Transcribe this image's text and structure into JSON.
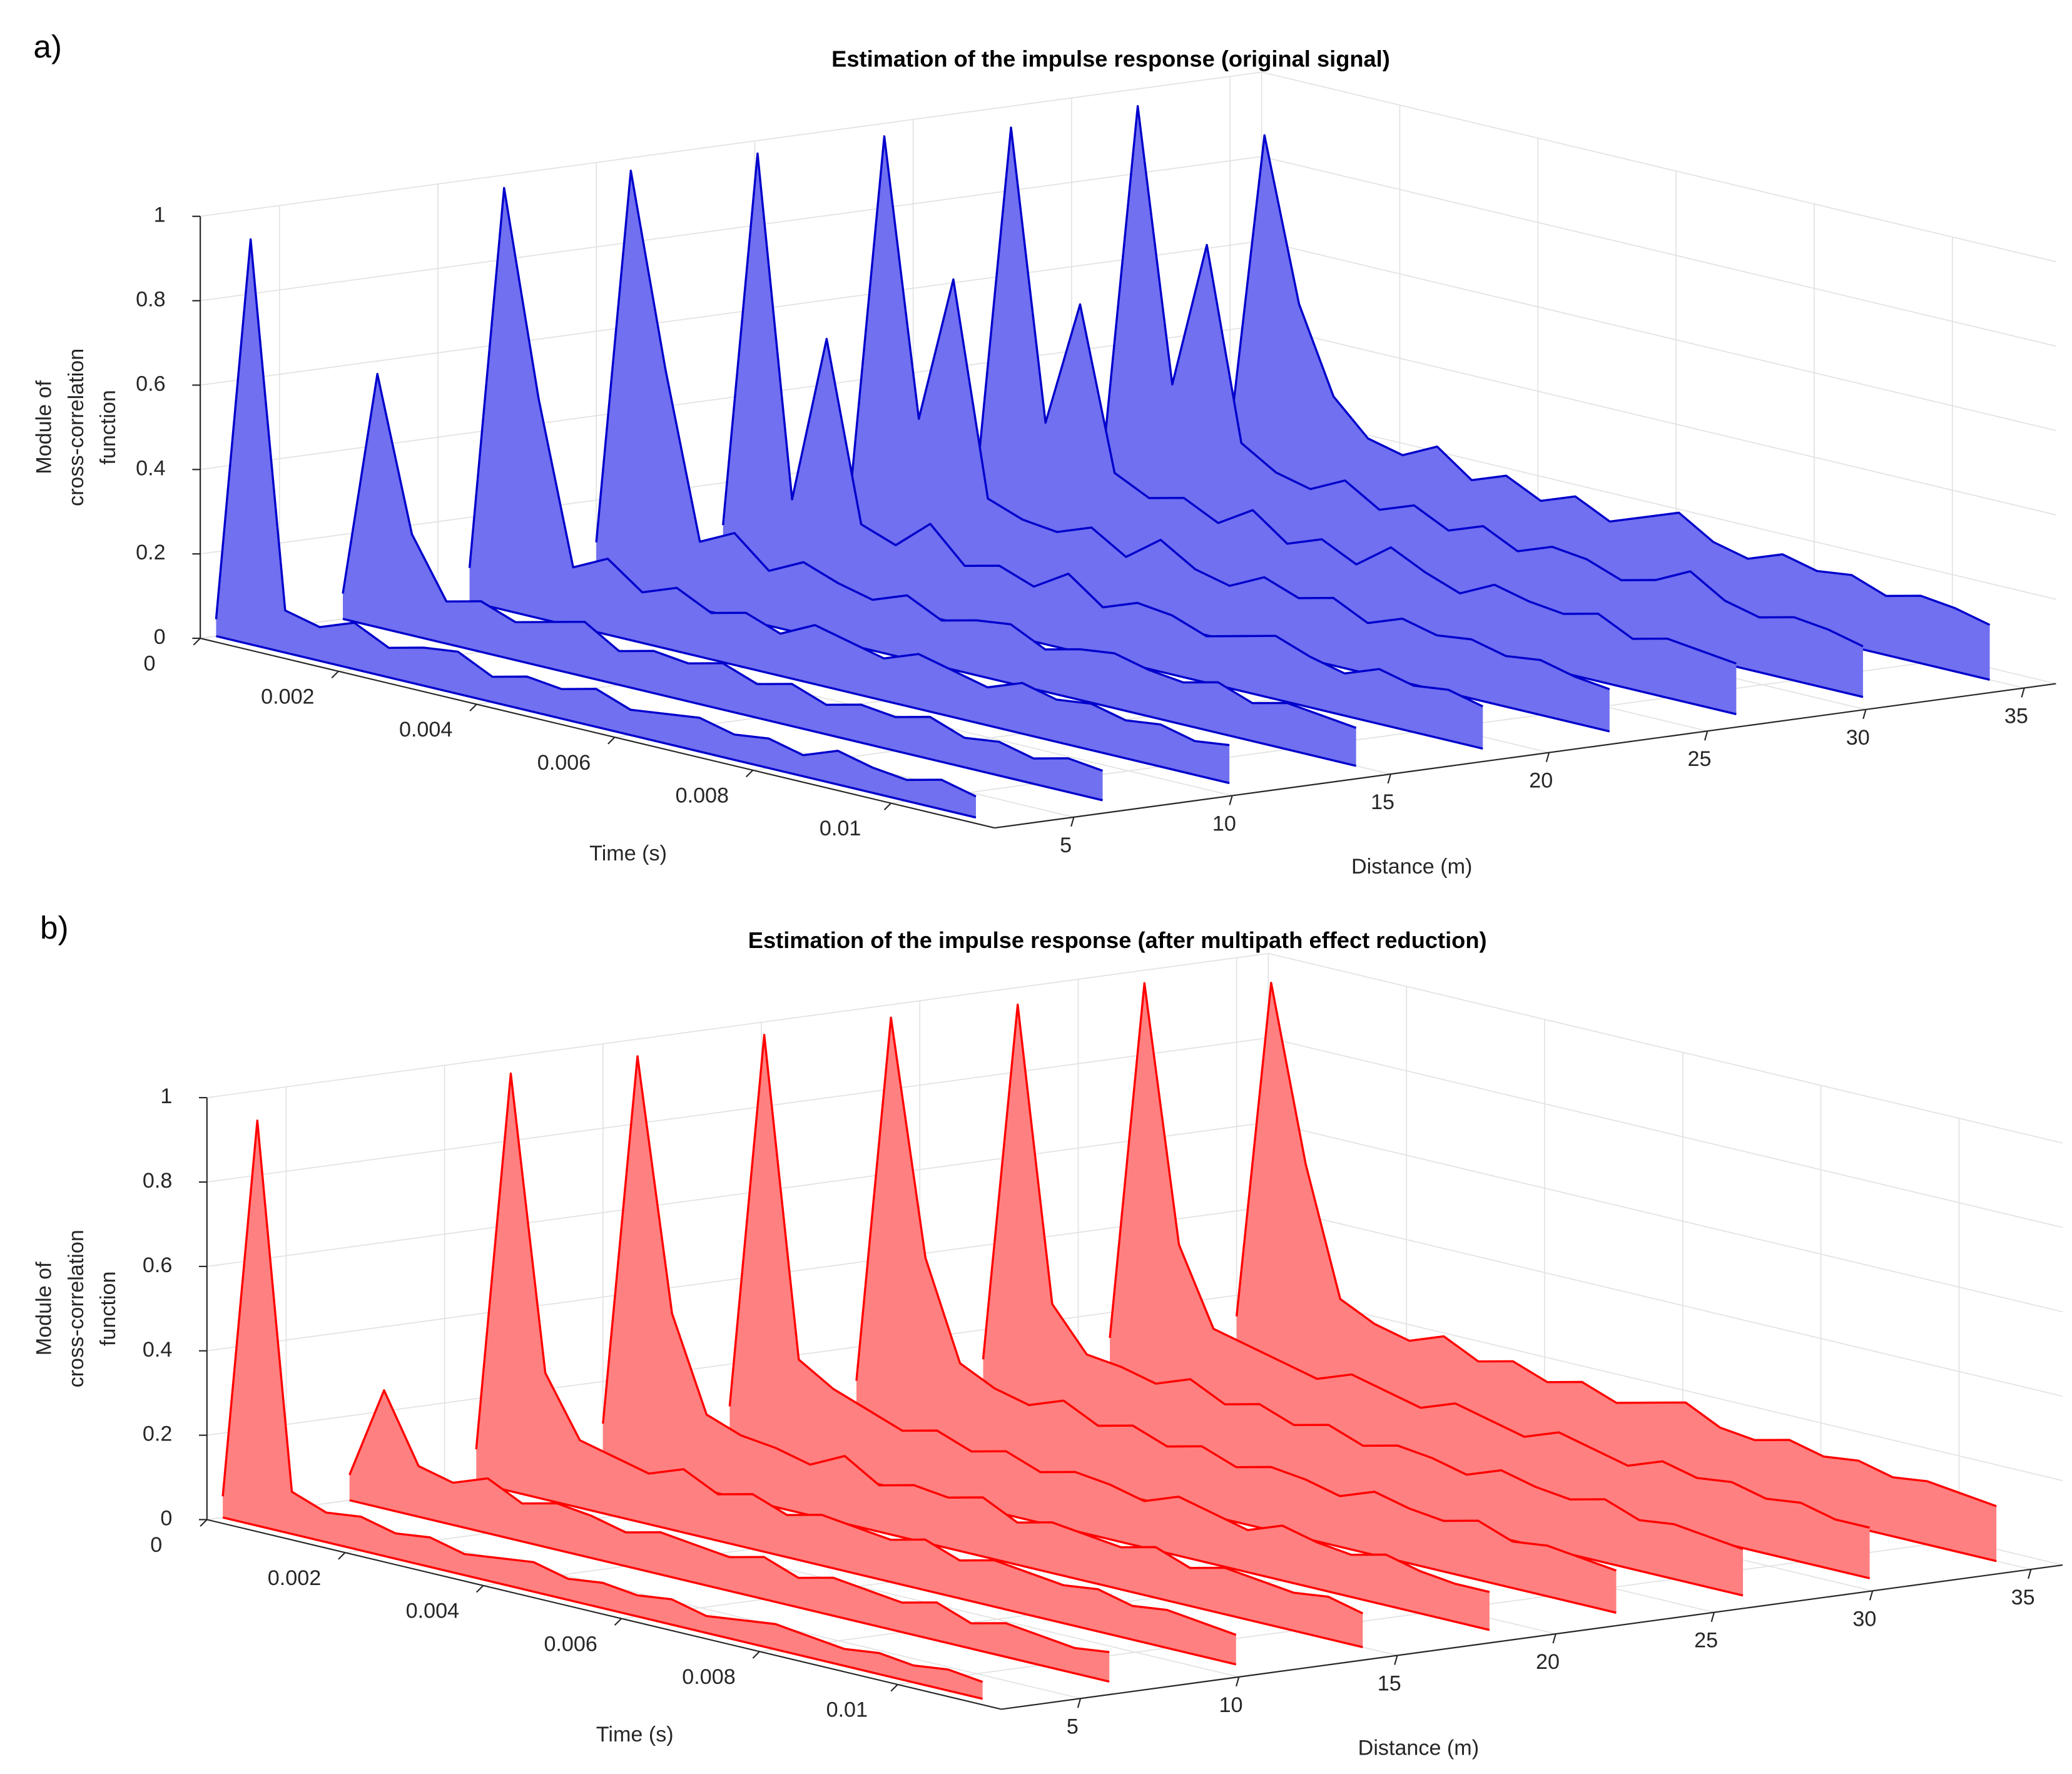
{
  "chart_data": [
    {
      "type": "waterfall3d",
      "label": "a)",
      "title": "Estimation of the impulse response (original signal)",
      "xlabel": "Time (s)",
      "ylabel": "Distance (m)",
      "zlabel": [
        "Module of",
        "cross-correlation",
        "function"
      ],
      "color": "#0000cc",
      "fill_color": "#7070f0",
      "xlim": [
        0,
        0.0115
      ],
      "ylim": [
        2.5,
        36
      ],
      "zlim": [
        0,
        1
      ],
      "xticks": [
        0,
        0.002,
        0.004,
        0.006,
        0.008,
        0.01
      ],
      "yticks": [
        5,
        10,
        15,
        20,
        25,
        30,
        35
      ],
      "zticks": [
        0,
        0.2,
        0.4,
        0.6,
        0.8,
        1
      ],
      "grid": true,
      "x": [
        0,
        0.0005,
        0.001,
        0.0015,
        0.002,
        0.0025,
        0.003,
        0.0035,
        0.004,
        0.0045,
        0.005,
        0.0055,
        0.006,
        0.0065,
        0.007,
        0.0075,
        0.008,
        0.0085,
        0.009,
        0.0095,
        0.01,
        0.0105,
        0.011
      ],
      "series": [
        {
          "distance": 3,
          "values": [
            0.04,
            0.96,
            0.1,
            0.08,
            0.11,
            0.07,
            0.09,
            0.1,
            0.06,
            0.08,
            0.07,
            0.09,
            0.06,
            0.07,
            0.08,
            0.06,
            0.07,
            0.05,
            0.08,
            0.06,
            0.05,
            0.07,
            0.05
          ]
        },
        {
          "distance": 7,
          "values": [
            0.06,
            0.6,
            0.24,
            0.1,
            0.12,
            0.09,
            0.11,
            0.13,
            0.08,
            0.1,
            0.09,
            0.11,
            0.08,
            0.1,
            0.07,
            0.09,
            0.08,
            0.1,
            0.07,
            0.08,
            0.06,
            0.08,
            0.07
          ]
        },
        {
          "distance": 11,
          "values": [
            0.08,
            1.0,
            0.52,
            0.14,
            0.18,
            0.12,
            0.15,
            0.11,
            0.13,
            0.1,
            0.14,
            0.12,
            0.1,
            0.13,
            0.11,
            0.09,
            0.12,
            0.1,
            0.11,
            0.09,
            0.1,
            0.08,
            0.09
          ]
        },
        {
          "distance": 15,
          "values": [
            0.1,
            1.0,
            0.55,
            0.16,
            0.2,
            0.13,
            0.17,
            0.14,
            0.12,
            0.15,
            0.11,
            0.13,
            0.14,
            0.1,
            0.12,
            0.13,
            0.11,
            0.1,
            0.12,
            0.09,
            0.11,
            0.1,
            0.09
          ]
        },
        {
          "distance": 19,
          "values": [
            0.1,
            1.0,
            0.2,
            0.6,
            0.18,
            0.15,
            0.22,
            0.14,
            0.16,
            0.13,
            0.18,
            0.12,
            0.15,
            0.14,
            0.11,
            0.13,
            0.15,
            0.12,
            0.1,
            0.13,
            0.11,
            0.12,
            0.1
          ]
        },
        {
          "distance": 23,
          "values": [
            0.12,
            1.0,
            0.35,
            0.7,
            0.2,
            0.17,
            0.16,
            0.19,
            0.14,
            0.2,
            0.15,
            0.13,
            0.17,
            0.14,
            0.16,
            0.12,
            0.15,
            0.13,
            0.14,
            0.12,
            0.13,
            0.11,
            0.1
          ]
        },
        {
          "distance": 27,
          "values": [
            0.12,
            0.98,
            0.3,
            0.6,
            0.22,
            0.18,
            0.2,
            0.16,
            0.21,
            0.15,
            0.18,
            0.14,
            0.2,
            0.16,
            0.13,
            0.17,
            0.15,
            0.14,
            0.16,
            0.12,
            0.14,
            0.13,
            0.12
          ]
        },
        {
          "distance": 31,
          "values": [
            0.14,
            0.99,
            0.35,
            0.7,
            0.25,
            0.2,
            0.18,
            0.22,
            0.17,
            0.2,
            0.16,
            0.19,
            0.15,
            0.18,
            0.17,
            0.14,
            0.16,
            0.2,
            0.15,
            0.13,
            0.15,
            0.14,
            0.12
          ]
        },
        {
          "distance": 35,
          "values": [
            0.15,
            0.88,
            0.5,
            0.3,
            0.22,
            0.2,
            0.24,
            0.18,
            0.21,
            0.17,
            0.2,
            0.16,
            0.19,
            0.22,
            0.17,
            0.15,
            0.18,
            0.16,
            0.17,
            0.14,
            0.16,
            0.15,
            0.13
          ]
        }
      ]
    },
    {
      "type": "waterfall3d",
      "label": "b)",
      "title": "Estimation of the impulse response (after multipath effect reduction)",
      "xlabel": "Time (s)",
      "ylabel": "Distance (m)",
      "zlabel": [
        "Module of",
        "cross-correlation",
        "function"
      ],
      "color": "#ff0000",
      "fill_color": "#ff8080",
      "xlim": [
        0,
        0.0115
      ],
      "ylim": [
        2.5,
        36
      ],
      "zlim": [
        0,
        1
      ],
      "xticks": [
        0,
        0.002,
        0.004,
        0.006,
        0.008,
        0.01
      ],
      "yticks": [
        5,
        10,
        15,
        20,
        25,
        30,
        35
      ],
      "zticks": [
        0,
        0.2,
        0.4,
        0.6,
        0.8,
        1
      ],
      "grid": true,
      "x": [
        0,
        0.0005,
        0.001,
        0.0015,
        0.002,
        0.0025,
        0.003,
        0.0035,
        0.004,
        0.0045,
        0.005,
        0.0055,
        0.006,
        0.0065,
        0.007,
        0.0075,
        0.008,
        0.0085,
        0.009,
        0.0095,
        0.01,
        0.0105,
        0.011
      ],
      "series": [
        {
          "distance": 3,
          "values": [
            0.05,
            0.96,
            0.1,
            0.07,
            0.08,
            0.06,
            0.07,
            0.05,
            0.06,
            0.07,
            0.05,
            0.06,
            0.05,
            0.06,
            0.04,
            0.05,
            0.06,
            0.05,
            0.04,
            0.05,
            0.04,
            0.05,
            0.04
          ]
        },
        {
          "distance": 7,
          "values": [
            0.06,
            0.28,
            0.12,
            0.1,
            0.13,
            0.09,
            0.11,
            0.1,
            0.08,
            0.1,
            0.09,
            0.08,
            0.1,
            0.07,
            0.09,
            0.08,
            0.07,
            0.09,
            0.06,
            0.08,
            0.07,
            0.06,
            0.07
          ]
        },
        {
          "distance": 11,
          "values": [
            0.08,
            0.99,
            0.3,
            0.16,
            0.14,
            0.12,
            0.15,
            0.11,
            0.13,
            0.1,
            0.12,
            0.11,
            0.1,
            0.12,
            0.09,
            0.11,
            0.1,
            0.09,
            0.1,
            0.08,
            0.09,
            0.08,
            0.07
          ]
        },
        {
          "distance": 15,
          "values": [
            0.1,
            0.99,
            0.4,
            0.18,
            0.15,
            0.14,
            0.12,
            0.16,
            0.11,
            0.13,
            0.12,
            0.14,
            0.1,
            0.12,
            0.11,
            0.1,
            0.12,
            0.09,
            0.11,
            0.1,
            0.09,
            0.1,
            0.08
          ]
        },
        {
          "distance": 19,
          "values": [
            0.1,
            1.0,
            0.25,
            0.2,
            0.17,
            0.14,
            0.16,
            0.13,
            0.15,
            0.12,
            0.14,
            0.13,
            0.11,
            0.14,
            0.12,
            0.1,
            0.13,
            0.11,
            0.1,
            0.12,
            0.1,
            0.09,
            0.09
          ]
        },
        {
          "distance": 23,
          "values": [
            0.12,
            1.0,
            0.45,
            0.22,
            0.18,
            0.16,
            0.19,
            0.15,
            0.17,
            0.14,
            0.16,
            0.13,
            0.15,
            0.14,
            0.12,
            0.15,
            0.13,
            0.12,
            0.14,
            0.11,
            0.12,
            0.11,
            0.1
          ]
        },
        {
          "distance": 27,
          "values": [
            0.13,
            0.99,
            0.3,
            0.2,
            0.19,
            0.17,
            0.2,
            0.16,
            0.18,
            0.15,
            0.17,
            0.14,
            0.16,
            0.15,
            0.13,
            0.16,
            0.14,
            0.13,
            0.15,
            0.12,
            0.13,
            0.12,
            0.11
          ]
        },
        {
          "distance": 31,
          "values": [
            0.14,
            1.0,
            0.4,
            0.22,
            0.2,
            0.18,
            0.16,
            0.19,
            0.17,
            0.15,
            0.18,
            0.16,
            0.14,
            0.17,
            0.15,
            0.13,
            0.16,
            0.14,
            0.15,
            0.13,
            0.14,
            0.12,
            0.12
          ]
        },
        {
          "distance": 35,
          "values": [
            0.15,
            0.96,
            0.55,
            0.25,
            0.21,
            0.19,
            0.22,
            0.18,
            0.2,
            0.17,
            0.19,
            0.16,
            0.18,
            0.2,
            0.16,
            0.15,
            0.17,
            0.15,
            0.16,
            0.14,
            0.15,
            0.14,
            0.13
          ]
        }
      ]
    }
  ]
}
